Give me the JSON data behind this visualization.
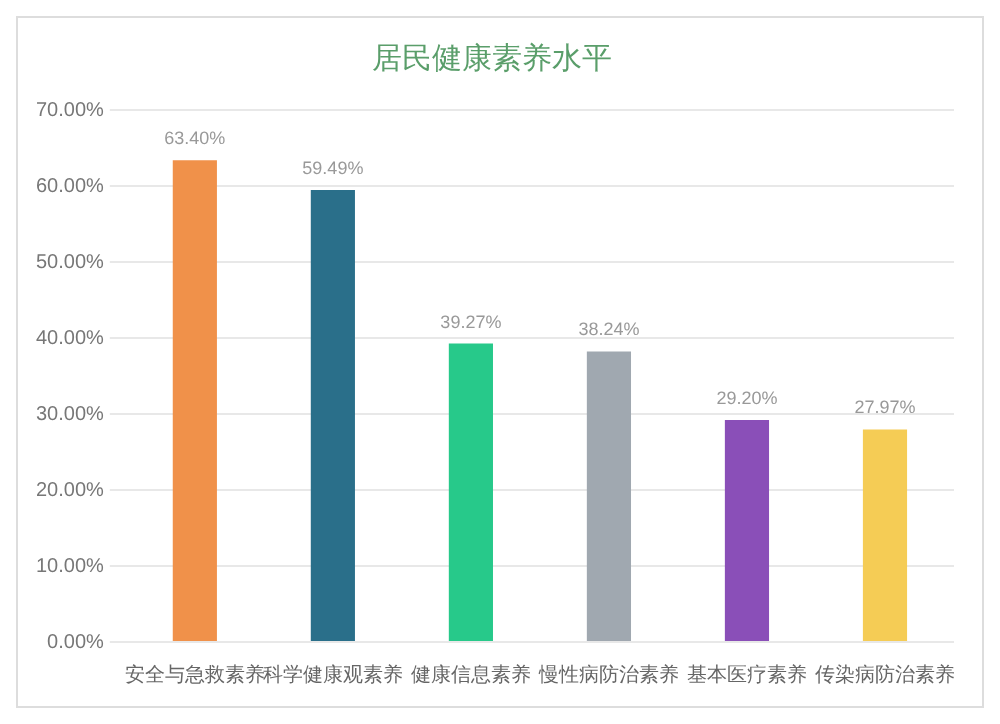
{
  "chart_data": {
    "type": "bar",
    "title": "居民健康素养水平",
    "categories": [
      "安全与急救素养",
      "科学健康观素养",
      "健康信息素养",
      "慢性病防治素养",
      "基本医疗素养",
      "传染病防治素养"
    ],
    "values": [
      63.4,
      59.49,
      39.27,
      38.24,
      29.2,
      27.97
    ],
    "colors": [
      "#f0914a",
      "#2a6f8a",
      "#27c98a",
      "#a0a8b0",
      "#8a4fb8",
      "#f5cc55"
    ],
    "value_labels": [
      "63.40%",
      "59.49%",
      "39.27%",
      "38.24%",
      "29.20%",
      "27.97%"
    ],
    "ylim": [
      0,
      70
    ],
    "yticks": [
      {
        "value": 0,
        "label": "0.00%"
      },
      {
        "value": 10,
        "label": "10.00%"
      },
      {
        "value": 20,
        "label": "20.00%"
      },
      {
        "value": 30,
        "label": "30.00%"
      },
      {
        "value": 40,
        "label": "40.00%"
      },
      {
        "value": 50,
        "label": "50.00%"
      },
      {
        "value": 60,
        "label": "60.00%"
      },
      {
        "value": 70,
        "label": "70.00%"
      }
    ],
    "grid": "y",
    "legend": false
  }
}
